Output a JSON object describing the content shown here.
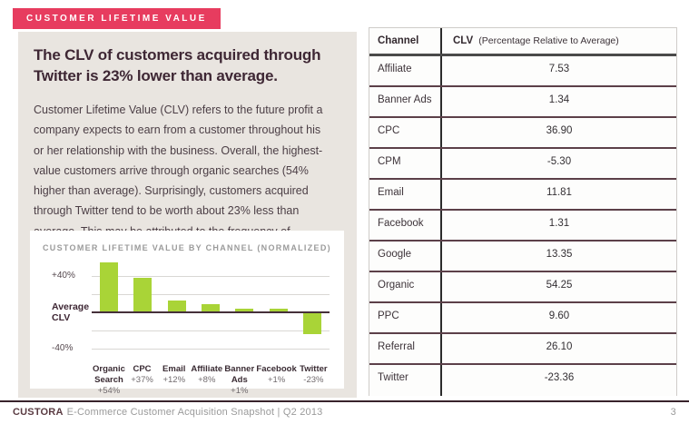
{
  "badge": "CUSTOMER LIFETIME VALUE",
  "headline": "The CLV of customers acquired through Twitter is 23% lower than average.",
  "body": "Customer Lifetime Value (CLV) refers to the future profit a company expects to earn from a customer throughout his or her relationship with the business. Overall, the highest-value customers arrive through organic searches (54% higher than average). Surprisingly, customers acquired through Twitter tend to be worth about 23% less than average. This may be attributed to the frequency of discounts offered within tweets.",
  "chart_data": {
    "type": "bar",
    "title": "CUSTOMER LIFETIME VALUE BY CHANNEL (NORMALIZED)",
    "categories": [
      "Organic Search",
      "CPC",
      "Email",
      "Affiliate",
      "Banner Ads",
      "Facebook",
      "Twitter"
    ],
    "values": [
      54,
      37,
      12,
      8,
      1,
      1,
      -23
    ],
    "value_labels": [
      "+54%",
      "+37%",
      "+12%",
      "+8%",
      "+1%",
      "+1%",
      "-23%"
    ],
    "ylim": [
      -40,
      40
    ],
    "gridlines": [
      40,
      20,
      -20,
      -40
    ],
    "y_axis_labels": {
      "top": "+40%",
      "zero": "Average CLV",
      "bottom": "-40%"
    },
    "bar_color": "#a9d437",
    "grid": "horizontal",
    "legend": "none"
  },
  "table": {
    "headers": {
      "channel": "Channel",
      "clv": "CLV",
      "clv_note": "(Percentage Relative to Average)"
    },
    "rows": [
      {
        "channel": "Affiliate",
        "clv": "7.53"
      },
      {
        "channel": "Banner Ads",
        "clv": "1.34"
      },
      {
        "channel": "CPC",
        "clv": "36.90"
      },
      {
        "channel": "CPM",
        "clv": "-5.30"
      },
      {
        "channel": "Email",
        "clv": "11.81"
      },
      {
        "channel": "Facebook",
        "clv": "1.31"
      },
      {
        "channel": "Google",
        "clv": "13.35"
      },
      {
        "channel": "Organic",
        "clv": "54.25"
      },
      {
        "channel": "PPC",
        "clv": "9.60"
      },
      {
        "channel": "Referral",
        "clv": "26.10"
      },
      {
        "channel": "Twitter",
        "clv": "-23.36"
      }
    ]
  },
  "footer": {
    "brand": "CUSTORA",
    "text": "E-Commerce Customer Acquisition Snapshot | Q2 2013",
    "page_number": "3"
  },
  "colors": {
    "accent_pink": "#e73c5f",
    "panel_beige": "#e9e5e0",
    "bar_green": "#a9d437",
    "headline_maroon": "#3e2734",
    "row_separator": "#5c4049"
  }
}
